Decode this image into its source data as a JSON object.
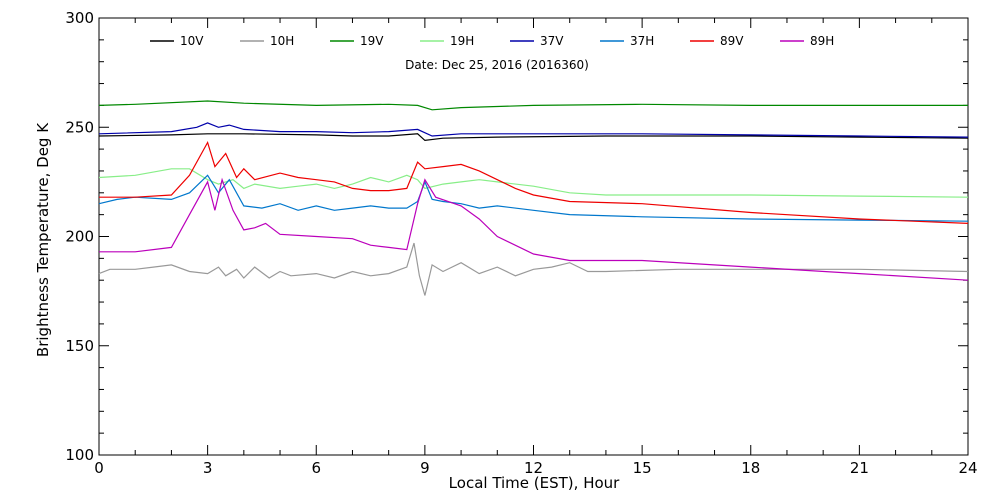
{
  "chart_data": {
    "type": "line",
    "subtitle": "Date: Dec 25, 2016 (2016360)",
    "xlabel": "Local Time (EST), Hour",
    "ylabel": "Brightness Temperature, Deg K",
    "xlim": [
      0,
      24
    ],
    "ylim": [
      100,
      300
    ],
    "xticks": [
      0,
      3,
      6,
      9,
      12,
      15,
      18,
      21,
      24
    ],
    "yticks": [
      100,
      150,
      200,
      250,
      300
    ],
    "x_tick_labels": [
      "0",
      "3",
      "6",
      "9",
      "12",
      "15",
      "18",
      "21",
      "24"
    ],
    "y_tick_labels": [
      "100",
      "150",
      "200",
      "250",
      "300"
    ],
    "grid": false,
    "legend_position": "top",
    "series": [
      {
        "name": "10V",
        "color": "#000000",
        "points": [
          [
            0,
            246
          ],
          [
            2,
            246.5
          ],
          [
            3,
            247
          ],
          [
            4,
            247
          ],
          [
            6,
            246.5
          ],
          [
            7,
            246
          ],
          [
            8,
            246
          ],
          [
            8.8,
            247
          ],
          [
            9,
            244
          ],
          [
            9.5,
            245
          ],
          [
            11,
            245.5
          ],
          [
            14,
            246
          ],
          [
            18,
            246
          ],
          [
            21,
            245.5
          ],
          [
            24,
            245
          ]
        ]
      },
      {
        "name": "10H",
        "color": "#999999",
        "points": [
          [
            0,
            183
          ],
          [
            0.3,
            185
          ],
          [
            1,
            185
          ],
          [
            1.5,
            186
          ],
          [
            2,
            187
          ],
          [
            2.5,
            184
          ],
          [
            3,
            183
          ],
          [
            3.3,
            186
          ],
          [
            3.5,
            182
          ],
          [
            3.8,
            185
          ],
          [
            4,
            181
          ],
          [
            4.3,
            186
          ],
          [
            4.7,
            181
          ],
          [
            5,
            184
          ],
          [
            5.3,
            182
          ],
          [
            6,
            183
          ],
          [
            6.5,
            181
          ],
          [
            7,
            184
          ],
          [
            7.5,
            182
          ],
          [
            8,
            183
          ],
          [
            8.5,
            186
          ],
          [
            8.7,
            197
          ],
          [
            8.85,
            182
          ],
          [
            9,
            173
          ],
          [
            9.2,
            187
          ],
          [
            9.5,
            184
          ],
          [
            10,
            188
          ],
          [
            10.5,
            183
          ],
          [
            11,
            186
          ],
          [
            11.5,
            182
          ],
          [
            12,
            185
          ],
          [
            12.5,
            186
          ],
          [
            13,
            188
          ],
          [
            13.5,
            184
          ],
          [
            14,
            184
          ],
          [
            16,
            185
          ],
          [
            18,
            185
          ],
          [
            21,
            185
          ],
          [
            24,
            184
          ]
        ]
      },
      {
        "name": "19V",
        "color": "#008800",
        "points": [
          [
            0,
            260
          ],
          [
            1,
            260.5
          ],
          [
            3,
            262
          ],
          [
            4,
            261
          ],
          [
            6,
            260
          ],
          [
            8,
            260.5
          ],
          [
            8.8,
            260
          ],
          [
            9.2,
            258
          ],
          [
            10,
            259
          ],
          [
            12,
            260
          ],
          [
            15,
            260.5
          ],
          [
            18,
            260
          ],
          [
            21,
            260
          ],
          [
            24,
            260
          ]
        ]
      },
      {
        "name": "19H",
        "color": "#88ee88",
        "points": [
          [
            0,
            227
          ],
          [
            1,
            228
          ],
          [
            2,
            231
          ],
          [
            2.5,
            231
          ],
          [
            3,
            226
          ],
          [
            3.3,
            224
          ],
          [
            3.7,
            226
          ],
          [
            4,
            222
          ],
          [
            4.3,
            224
          ],
          [
            5,
            222
          ],
          [
            5.5,
            223
          ],
          [
            6,
            224
          ],
          [
            6.5,
            222
          ],
          [
            7,
            224
          ],
          [
            7.5,
            227
          ],
          [
            8,
            225
          ],
          [
            8.5,
            228
          ],
          [
            8.8,
            226
          ],
          [
            9,
            222
          ],
          [
            9.5,
            224
          ],
          [
            10,
            225
          ],
          [
            10.5,
            226
          ],
          [
            11,
            225
          ],
          [
            12,
            223
          ],
          [
            13,
            220
          ],
          [
            14,
            219
          ],
          [
            16,
            219
          ],
          [
            18,
            219
          ],
          [
            21,
            218.5
          ],
          [
            24,
            218
          ]
        ]
      },
      {
        "name": "37V",
        "color": "#0000aa",
        "points": [
          [
            0,
            247
          ],
          [
            2,
            248
          ],
          [
            2.7,
            250
          ],
          [
            3,
            252
          ],
          [
            3.3,
            250
          ],
          [
            3.6,
            251
          ],
          [
            4,
            249
          ],
          [
            5,
            248
          ],
          [
            6,
            248
          ],
          [
            7,
            247.5
          ],
          [
            8,
            248
          ],
          [
            8.8,
            249
          ],
          [
            9.2,
            246
          ],
          [
            10,
            247
          ],
          [
            12,
            247
          ],
          [
            15,
            247
          ],
          [
            18,
            246.5
          ],
          [
            21,
            246
          ],
          [
            24,
            245.5
          ]
        ]
      },
      {
        "name": "37H",
        "color": "#0077cc",
        "points": [
          [
            0,
            215
          ],
          [
            0.5,
            217
          ],
          [
            1,
            218
          ],
          [
            2,
            217
          ],
          [
            2.5,
            220
          ],
          [
            3,
            228
          ],
          [
            3.3,
            220
          ],
          [
            3.6,
            226
          ],
          [
            4,
            214
          ],
          [
            4.5,
            213
          ],
          [
            5,
            215
          ],
          [
            5.5,
            212
          ],
          [
            6,
            214
          ],
          [
            6.5,
            212
          ],
          [
            7,
            213
          ],
          [
            7.5,
            214
          ],
          [
            8,
            213
          ],
          [
            8.5,
            213
          ],
          [
            8.8,
            216
          ],
          [
            9,
            225
          ],
          [
            9.2,
            217
          ],
          [
            9.5,
            216
          ],
          [
            10,
            215
          ],
          [
            10.5,
            213
          ],
          [
            11,
            214
          ],
          [
            12,
            212
          ],
          [
            13,
            210
          ],
          [
            15,
            209
          ],
          [
            18,
            208
          ],
          [
            21,
            207.5
          ],
          [
            24,
            207
          ]
        ]
      },
      {
        "name": "89V",
        "color": "#ee0000",
        "points": [
          [
            0,
            218
          ],
          [
            1,
            218
          ],
          [
            2,
            219
          ],
          [
            2.5,
            228
          ],
          [
            3,
            243
          ],
          [
            3.2,
            232
          ],
          [
            3.5,
            238
          ],
          [
            3.8,
            227
          ],
          [
            4,
            231
          ],
          [
            4.3,
            226
          ],
          [
            5,
            229
          ],
          [
            5.5,
            227
          ],
          [
            6,
            226
          ],
          [
            6.5,
            225
          ],
          [
            7,
            222
          ],
          [
            7.5,
            221
          ],
          [
            8,
            221
          ],
          [
            8.5,
            222
          ],
          [
            8.8,
            234
          ],
          [
            9,
            231
          ],
          [
            9.5,
            232
          ],
          [
            10,
            233
          ],
          [
            10.5,
            230
          ],
          [
            11,
            226
          ],
          [
            11.5,
            222
          ],
          [
            12,
            219
          ],
          [
            13,
            216
          ],
          [
            15,
            215
          ],
          [
            18,
            211
          ],
          [
            21,
            208
          ],
          [
            24,
            206
          ]
        ]
      },
      {
        "name": "89H",
        "color": "#bb00bb",
        "points": [
          [
            0,
            193
          ],
          [
            1,
            193
          ],
          [
            2,
            195
          ],
          [
            2.5,
            210
          ],
          [
            3,
            225
          ],
          [
            3.2,
            212
          ],
          [
            3.4,
            226
          ],
          [
            3.7,
            212
          ],
          [
            4,
            203
          ],
          [
            4.3,
            204
          ],
          [
            4.6,
            206
          ],
          [
            5,
            201
          ],
          [
            6,
            200
          ],
          [
            7,
            199
          ],
          [
            7.5,
            196
          ],
          [
            8,
            195
          ],
          [
            8.5,
            194
          ],
          [
            8.8,
            215
          ],
          [
            9,
            226
          ],
          [
            9.3,
            218
          ],
          [
            10,
            214
          ],
          [
            10.5,
            208
          ],
          [
            11,
            200
          ],
          [
            12,
            192
          ],
          [
            13,
            189
          ],
          [
            15,
            189
          ],
          [
            18,
            186
          ],
          [
            21,
            183
          ],
          [
            24,
            180
          ]
        ]
      }
    ]
  }
}
